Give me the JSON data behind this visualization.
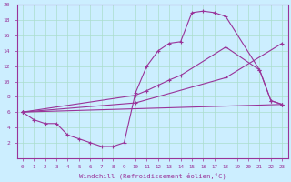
{
  "background_color": "#cceeff",
  "grid_color": "#aaddcc",
  "line_color": "#993399",
  "xlabel": "Windchill (Refroidissement éolien,°C)",
  "xlim": [
    -0.5,
    23.5
  ],
  "ylim": [
    0,
    20
  ],
  "xticks": [
    0,
    1,
    2,
    3,
    4,
    5,
    6,
    7,
    8,
    9,
    10,
    11,
    12,
    13,
    14,
    15,
    16,
    17,
    18,
    19,
    20,
    21,
    22,
    23
  ],
  "yticks": [
    2,
    4,
    6,
    8,
    10,
    12,
    14,
    16,
    18,
    20
  ],
  "curve1_x": [
    0,
    1,
    2,
    3,
    4,
    5,
    6,
    7,
    8,
    9,
    10,
    11,
    12,
    13,
    14,
    15,
    16,
    17,
    18,
    21,
    22,
    23
  ],
  "curve1_y": [
    6,
    5,
    4.5,
    4.5,
    3,
    2.5,
    2,
    1.5,
    1.5,
    2,
    8.5,
    12,
    14,
    15,
    15.2,
    19,
    19.2,
    19,
    18.5,
    11.5,
    7.5,
    7
  ],
  "curve2_x": [
    0,
    10,
    11,
    12,
    13,
    14,
    18,
    21,
    22,
    23
  ],
  "curve2_y": [
    6,
    8.2,
    8.8,
    9.5,
    10.2,
    10.8,
    14.5,
    11.5,
    7.5,
    7
  ],
  "curve3_x": [
    0,
    10,
    18,
    23
  ],
  "curve3_y": [
    6,
    7.2,
    10.5,
    15
  ],
  "curve4_x": [
    0,
    23
  ],
  "curve4_y": [
    6,
    7
  ]
}
